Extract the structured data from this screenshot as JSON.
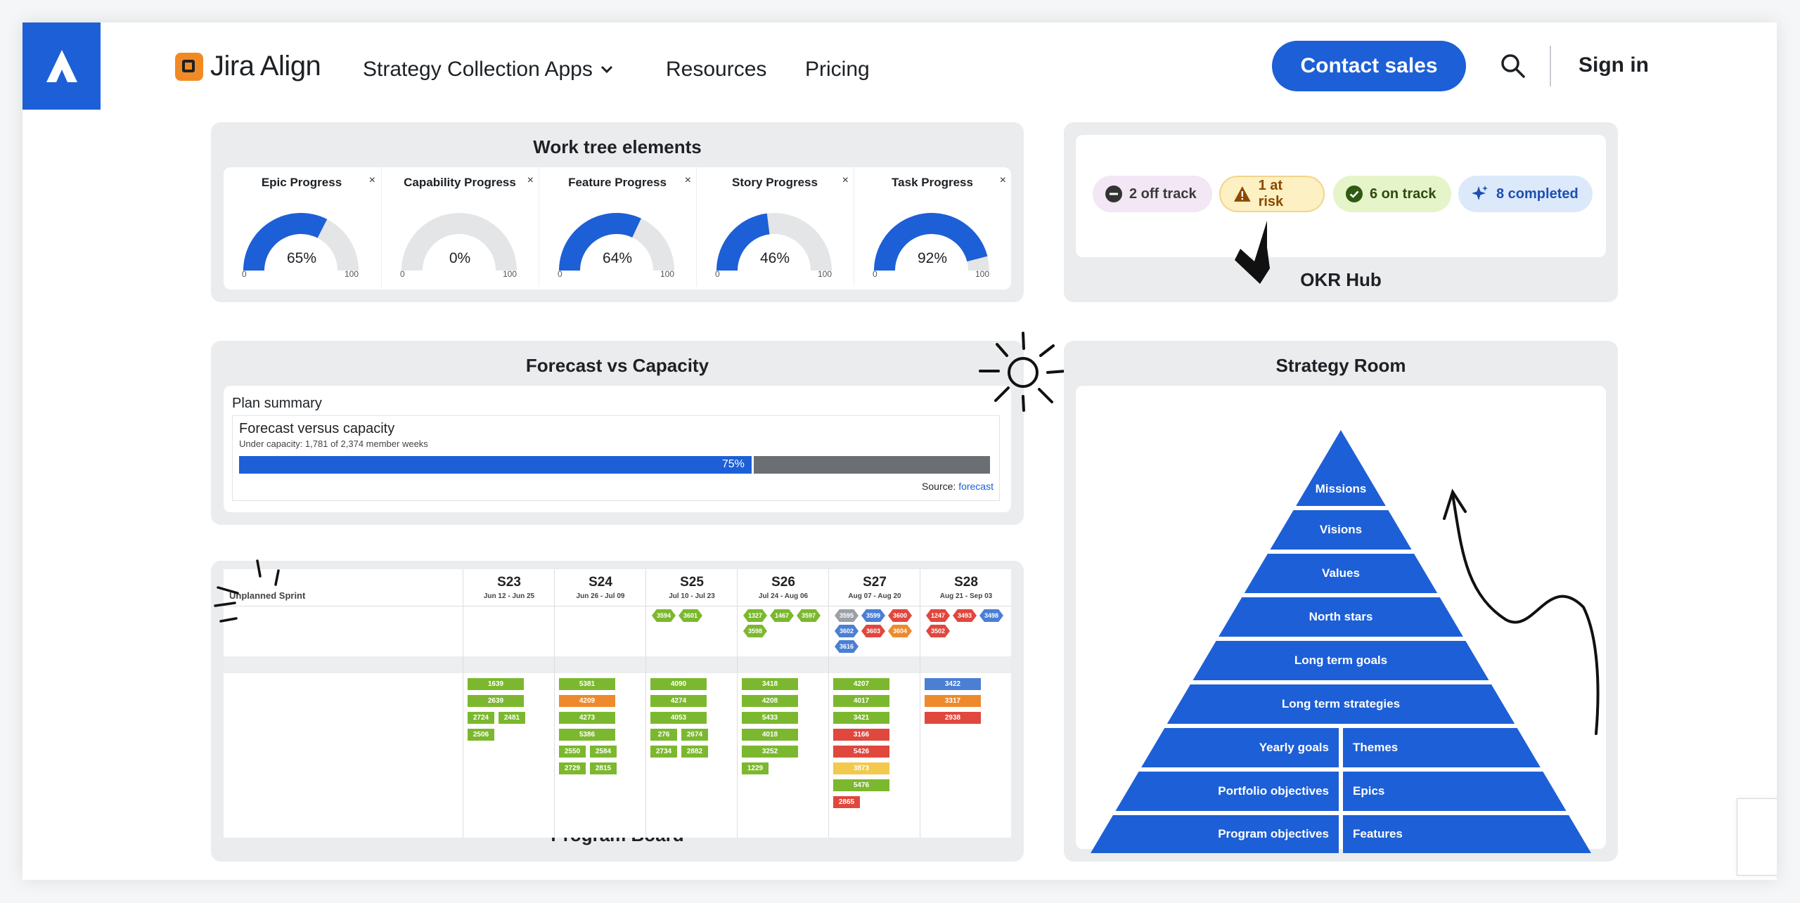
{
  "header": {
    "brand": "Jira Align",
    "nav": [
      {
        "label": "Strategy Collection Apps"
      },
      {
        "label": "Resources"
      },
      {
        "label": "Pricing"
      }
    ],
    "contact_label": "Contact sales",
    "signin_label": "Sign in"
  },
  "work_tree": {
    "title": "Work tree elements",
    "gauges": [
      {
        "name": "Epic Progress",
        "value": 65,
        "label": "65%"
      },
      {
        "name": "Capability Progress",
        "value": 0,
        "label": "0%"
      },
      {
        "name": "Feature Progress",
        "value": 64,
        "label": "64%"
      },
      {
        "name": "Story Progress",
        "value": 46,
        "label": "46%"
      },
      {
        "name": "Task Progress",
        "value": 92,
        "label": "92%"
      }
    ],
    "gauge_min": "0",
    "gauge_max": "100",
    "close_glyph": "×"
  },
  "okr": {
    "title": "OKR Hub",
    "pills": [
      {
        "label": "2 off track",
        "bg": "#f3e6f5",
        "fg": "#3a3a3a",
        "icon": "minus-circle-icon"
      },
      {
        "label": "1 at risk",
        "bg": "#fdf0c2",
        "fg": "#8a4a00",
        "icon": "warning-icon"
      },
      {
        "label": "6 on track",
        "bg": "#e6f4c9",
        "fg": "#2e4a12",
        "icon": "check-circle-icon"
      },
      {
        "label": "8 completed",
        "bg": "#dce9fb",
        "fg": "#1d4fb0",
        "icon": "sparkle-icon"
      }
    ]
  },
  "forecast": {
    "title": "Forecast vs Capacity",
    "plan_summary": "Plan summary",
    "heading": "Forecast versus capacity",
    "subheading": "Under capacity: 1,781 of 2,374 member weeks",
    "progress": 75,
    "progress_label": "75%",
    "source_label": "Source:",
    "source_link": "forecast"
  },
  "program_board": {
    "title": "Program Board",
    "unplanned": "Unplanned Sprint",
    "sprints": [
      {
        "name": "S23",
        "dates": "Jun 12 - Jun 25"
      },
      {
        "name": "S24",
        "dates": "Jun 26 - Jul 09"
      },
      {
        "name": "S25",
        "dates": "Jul 10 - Jul 23"
      },
      {
        "name": "S26",
        "dates": "Jul 24 - Aug 06"
      },
      {
        "name": "S27",
        "dates": "Aug 07 - Aug 20"
      },
      {
        "name": "S28",
        "dates": "Aug 21 - Sep 03"
      }
    ],
    "hex_rows": [
      [],
      [],
      [
        {
          "id": "3594",
          "c": "#7cb82f"
        },
        {
          "id": "3601",
          "c": "#7cb82f"
        }
      ],
      [
        {
          "id": "1327",
          "c": "#7cb82f"
        },
        {
          "id": "1467",
          "c": "#7cb82f"
        },
        {
          "id": "3597",
          "c": "#7cb82f"
        },
        {
          "id": "3598",
          "c": "#7cb82f"
        }
      ],
      [
        {
          "id": "3595",
          "c": "#9aa0a6"
        },
        {
          "id": "3599",
          "c": "#4a7fd4"
        },
        {
          "id": "3600",
          "c": "#e0473d"
        },
        {
          "id": "3602",
          "c": "#4a7fd4"
        },
        {
          "id": "3603",
          "c": "#e0473d"
        },
        {
          "id": "3604",
          "c": "#ee8a2b"
        },
        {
          "id": "3616",
          "c": "#4a7fd4"
        }
      ],
      [
        {
          "id": "1247",
          "c": "#e0473d"
        },
        {
          "id": "3493",
          "c": "#e0473d"
        },
        {
          "id": "3498",
          "c": "#4a7fd4"
        },
        {
          "id": "3502",
          "c": "#e0473d"
        }
      ]
    ],
    "tiles": [
      [
        {
          "id": "1639",
          "c": "#7cb82f"
        },
        {
          "id": "2639",
          "c": "#7cb82f"
        },
        {
          "id": "2724",
          "c": "#7cb82f",
          "half": 1
        },
        {
          "id": "2481",
          "c": "#7cb82f",
          "half": 2
        },
        {
          "id": "2506",
          "c": "#7cb82f",
          "half": 1
        }
      ],
      [
        {
          "id": "5381",
          "c": "#7cb82f"
        },
        {
          "id": "4209",
          "c": "#ee8a2b"
        },
        {
          "id": "4273",
          "c": "#7cb82f"
        },
        {
          "id": "5386",
          "c": "#7cb82f"
        },
        {
          "id": "2550",
          "c": "#7cb82f",
          "half": 1
        },
        {
          "id": "2584",
          "c": "#7cb82f",
          "half": 2
        },
        {
          "id": "2729",
          "c": "#7cb82f",
          "half": 1
        },
        {
          "id": "2815",
          "c": "#7cb82f",
          "half": 2
        }
      ],
      [
        {
          "id": "4090",
          "c": "#7cb82f"
        },
        {
          "id": "4274",
          "c": "#7cb82f"
        },
        {
          "id": "4053",
          "c": "#7cb82f"
        },
        {
          "id": "276",
          "c": "#7cb82f",
          "half": 1
        },
        {
          "id": "2674",
          "c": "#7cb82f",
          "half": 2
        },
        {
          "id": "2734",
          "c": "#7cb82f",
          "half": 1
        },
        {
          "id": "2882",
          "c": "#7cb82f",
          "half": 2
        }
      ],
      [
        {
          "id": "3418",
          "c": "#7cb82f"
        },
        {
          "id": "4208",
          "c": "#7cb82f"
        },
        {
          "id": "5433",
          "c": "#7cb82f"
        },
        {
          "id": "4018",
          "c": "#7cb82f"
        },
        {
          "id": "3252",
          "c": "#7cb82f"
        },
        {
          "id": "1229",
          "c": "#7cb82f",
          "half": 1
        }
      ],
      [
        {
          "id": "4207",
          "c": "#7cb82f"
        },
        {
          "id": "4017",
          "c": "#7cb82f"
        },
        {
          "id": "3421",
          "c": "#7cb82f"
        },
        {
          "id": "3166",
          "c": "#e0473d"
        },
        {
          "id": "5426",
          "c": "#e0473d"
        },
        {
          "id": "3873",
          "c": "#f2c94c"
        },
        {
          "id": "5476",
          "c": "#7cb82f"
        },
        {
          "id": "2865",
          "c": "#e0473d",
          "half": 1
        }
      ],
      [
        {
          "id": "3422",
          "c": "#4a7fd4"
        },
        {
          "id": "3317",
          "c": "#ee8a2b"
        },
        {
          "id": "2938",
          "c": "#e0473d"
        }
      ]
    ]
  },
  "strategy": {
    "title": "Strategy Room",
    "tiers": [
      {
        "label": "Missions"
      },
      {
        "label": "Visions"
      },
      {
        "label": "Values"
      },
      {
        "label": "North stars"
      },
      {
        "label": "Long term goals"
      },
      {
        "label": "Long term strategies"
      },
      {
        "label": "Yearly goals",
        "right": "Themes"
      },
      {
        "label": "Portfolio objectives",
        "right": "Epics"
      },
      {
        "label": "Program objectives",
        "right": "Features"
      }
    ]
  }
}
